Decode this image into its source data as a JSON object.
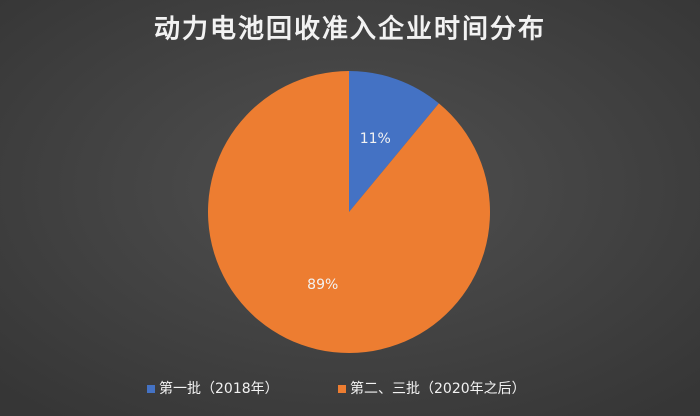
{
  "chart_data": {
    "type": "pie",
    "title": "动力电池回收准入企业时间分布",
    "categories": [
      "第一批（2018年）",
      "第二、三批（2020年之后）"
    ],
    "values": [
      11,
      89
    ],
    "value_labels": [
      "11%",
      "89%"
    ],
    "colors": [
      "#4472c4",
      "#ed7d31"
    ],
    "legend": "bottom"
  }
}
